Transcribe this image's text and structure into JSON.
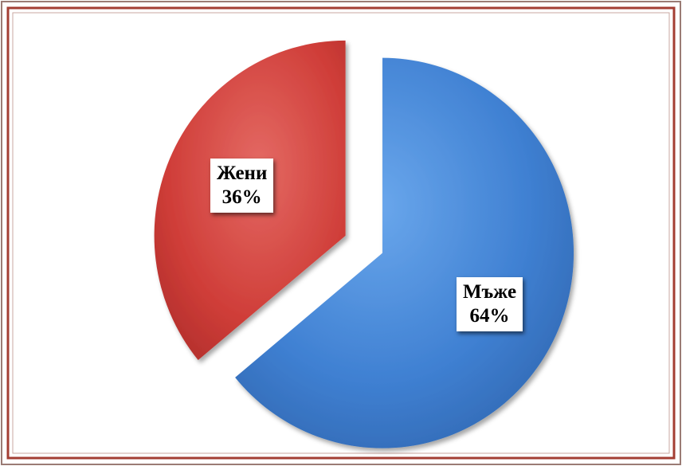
{
  "chart_data": {
    "type": "pie",
    "style": "3d-shaded-exploded",
    "legend": "none",
    "slices": [
      {
        "label": "Мъже",
        "value": 64,
        "value_label": "64%",
        "color": "#3d7fd0"
      },
      {
        "label": "Жени",
        "value": 36,
        "value_label": "36%",
        "color": "#cf3b37"
      }
    ]
  }
}
